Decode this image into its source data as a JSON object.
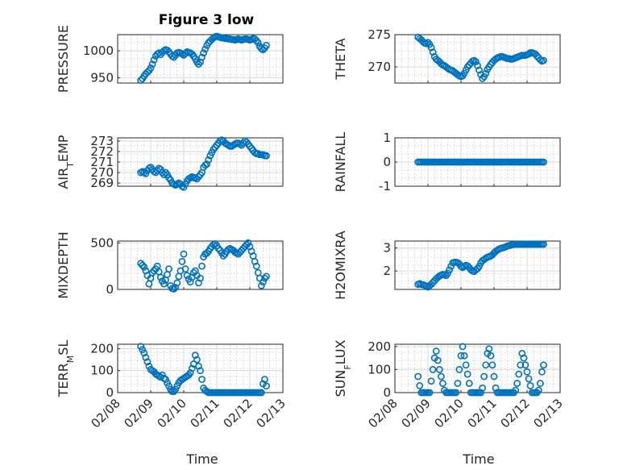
{
  "figure_title": "Figure 3 low",
  "xlabel": "Time",
  "x_ticks": [
    "02/08",
    "02/09",
    "02/10",
    "02/11",
    "02/12",
    "02/13"
  ],
  "marker_color": "#0072bd",
  "chart_data": [
    {
      "type": "scatter",
      "ylabel": "PRESSURE",
      "ylim": [
        940,
        1030
      ],
      "yticks": [
        "950",
        "1000"
      ],
      "xlim": [
        0,
        5
      ],
      "grid": true,
      "x": [
        0.7,
        0.75,
        0.8,
        0.85,
        0.9,
        0.95,
        1.0,
        1.05,
        1.1,
        1.15,
        1.2,
        1.25,
        1.3,
        1.35,
        1.4,
        1.45,
        1.5,
        1.55,
        1.6,
        1.65,
        1.7,
        1.75,
        1.8,
        1.85,
        1.9,
        1.95,
        2.0,
        2.05,
        2.1,
        2.15,
        2.2,
        2.25,
        2.3,
        2.35,
        2.4,
        2.45,
        2.5,
        2.55,
        2.6,
        2.65,
        2.7,
        2.75,
        2.8,
        2.85,
        2.9,
        2.95,
        3.0,
        3.05,
        3.1,
        3.15,
        3.2,
        3.25,
        3.3,
        3.35,
        3.4,
        3.45,
        3.5,
        3.55,
        3.6,
        3.65,
        3.7,
        3.75,
        3.8,
        3.85,
        3.9,
        3.95,
        4.0,
        4.05,
        4.1,
        4.15,
        4.2,
        4.25,
        4.3,
        4.35,
        4.4,
        4.45,
        4.5
      ],
      "values": [
        945,
        948,
        953,
        957,
        960,
        963,
        968,
        975,
        983,
        990,
        994,
        996,
        993,
        997,
        1000,
        1002,
        1001,
        998,
        994,
        990,
        988,
        992,
        996,
        997,
        996,
        994,
        992,
        995,
        998,
        997,
        996,
        994,
        990,
        985,
        979,
        975,
        979,
        988,
        996,
        1003,
        1010,
        1015,
        1018,
        1021,
        1024,
        1026,
        1027,
        1026,
        1025,
        1024,
        1024,
        1023,
        1023,
        1022,
        1022,
        1021,
        1021,
        1020,
        1021,
        1022,
        1021,
        1020,
        1021,
        1022,
        1022,
        1021,
        1020,
        1021,
        1023,
        1022,
        1019,
        1015,
        1008,
        1004,
        1002,
        1005,
        1010
      ]
    },
    {
      "type": "scatter",
      "ylabel": "THETA",
      "ylim": [
        267.5,
        275
      ],
      "yticks": [
        "270",
        "275"
      ],
      "xlim": [
        0,
        5
      ],
      "grid": true,
      "x": [
        0.7,
        0.75,
        0.8,
        0.85,
        0.9,
        0.95,
        1.0,
        1.05,
        1.1,
        1.15,
        1.2,
        1.25,
        1.3,
        1.35,
        1.4,
        1.45,
        1.5,
        1.55,
        1.6,
        1.65,
        1.7,
        1.75,
        1.8,
        1.85,
        1.9,
        1.95,
        2.0,
        2.05,
        2.1,
        2.15,
        2.2,
        2.25,
        2.3,
        2.35,
        2.4,
        2.45,
        2.5,
        2.55,
        2.6,
        2.65,
        2.7,
        2.75,
        2.8,
        2.85,
        2.9,
        2.95,
        3.0,
        3.05,
        3.1,
        3.15,
        3.2,
        3.25,
        3.3,
        3.35,
        3.4,
        3.45,
        3.5,
        3.55,
        3.6,
        3.65,
        3.7,
        3.75,
        3.8,
        3.85,
        3.9,
        3.95,
        4.0,
        4.05,
        4.1,
        4.15,
        4.2,
        4.25,
        4.3,
        4.35,
        4.4,
        4.45,
        4.5
      ],
      "values": [
        274.6,
        274.4,
        274.2,
        273.9,
        273.7,
        273.6,
        273.8,
        273.5,
        273.0,
        272.3,
        271.6,
        271.2,
        271.0,
        270.8,
        270.5,
        270.3,
        270.2,
        270.0,
        269.8,
        269.6,
        269.5,
        269.4,
        269.2,
        269.0,
        268.8,
        268.6,
        268.5,
        268.6,
        269.0,
        269.5,
        270.0,
        270.3,
        270.6,
        270.9,
        271.0,
        270.8,
        270.2,
        269.5,
        268.8,
        268.2,
        268.5,
        269.0,
        269.6,
        270.0,
        270.4,
        270.7,
        271.0,
        271.2,
        271.4,
        271.5,
        271.6,
        271.6,
        271.5,
        271.4,
        271.3,
        271.3,
        271.2,
        271.2,
        271.3,
        271.4,
        271.5,
        271.6,
        271.7,
        271.8,
        271.8,
        271.8,
        271.9,
        272.0,
        272.2,
        272.2,
        272.1,
        272.0,
        271.7,
        271.4,
        271.1,
        270.9,
        271.0
      ]
    },
    {
      "type": "scatter",
      "ylabel": "AIR_T_EMP",
      "ylim": [
        268.7,
        273.3
      ],
      "yticks": [
        "269",
        "270",
        "271",
        "272",
        "273"
      ],
      "xlim": [
        0,
        5
      ],
      "grid": true,
      "x": [
        0.7,
        0.75,
        0.8,
        0.85,
        0.9,
        0.95,
        1.0,
        1.05,
        1.1,
        1.15,
        1.2,
        1.25,
        1.3,
        1.35,
        1.4,
        1.45,
        1.5,
        1.55,
        1.6,
        1.65,
        1.7,
        1.75,
        1.8,
        1.85,
        1.9,
        1.95,
        2.0,
        2.05,
        2.1,
        2.15,
        2.2,
        2.25,
        2.3,
        2.35,
        2.4,
        2.45,
        2.5,
        2.55,
        2.6,
        2.65,
        2.7,
        2.75,
        2.8,
        2.85,
        2.9,
        2.95,
        3.0,
        3.05,
        3.1,
        3.15,
        3.2,
        3.25,
        3.3,
        3.35,
        3.4,
        3.45,
        3.5,
        3.55,
        3.6,
        3.65,
        3.7,
        3.75,
        3.8,
        3.85,
        3.9,
        3.95,
        4.0,
        4.05,
        4.1,
        4.15,
        4.2,
        4.25,
        4.3,
        4.35,
        4.4,
        4.45,
        4.5
      ],
      "values": [
        270.0,
        270.1,
        270.0,
        269.9,
        270.2,
        270.4,
        270.5,
        270.3,
        270.1,
        270.0,
        270.2,
        270.4,
        270.3,
        270.0,
        269.8,
        270.0,
        269.8,
        269.5,
        269.3,
        269.0,
        268.9,
        268.8,
        268.9,
        269.0,
        268.9,
        268.7,
        268.6,
        268.9,
        269.2,
        269.4,
        269.5,
        269.6,
        269.5,
        269.5,
        269.4,
        269.6,
        269.8,
        270.0,
        270.5,
        270.7,
        270.8,
        271.2,
        271.6,
        271.9,
        272.2,
        272.4,
        272.6,
        272.8,
        273.0,
        273.1,
        273.0,
        272.8,
        272.7,
        272.6,
        272.5,
        272.5,
        272.6,
        272.7,
        272.8,
        272.8,
        272.7,
        272.6,
        272.8,
        273.0,
        272.9,
        272.7,
        272.5,
        272.3,
        272.1,
        271.9,
        271.8,
        271.8,
        271.7,
        271.7,
        271.7,
        271.6,
        271.6
      ]
    },
    {
      "type": "scatter",
      "ylabel": "RAINFALL",
      "ylim": [
        -1,
        1
      ],
      "yticks": [
        "-1",
        "0",
        "1"
      ],
      "xlim": [
        0,
        5
      ],
      "grid": true,
      "x": [
        0.7,
        0.75,
        0.8,
        0.85,
        0.9,
        0.95,
        1.0,
        1.05,
        1.1,
        1.15,
        1.2,
        1.25,
        1.3,
        1.35,
        1.4,
        1.45,
        1.5,
        1.55,
        1.6,
        1.65,
        1.7,
        1.75,
        1.8,
        1.85,
        1.9,
        1.95,
        2.0,
        2.05,
        2.1,
        2.15,
        2.2,
        2.25,
        2.3,
        2.35,
        2.4,
        2.45,
        2.5,
        2.55,
        2.6,
        2.65,
        2.7,
        2.75,
        2.8,
        2.85,
        2.9,
        2.95,
        3.0,
        3.05,
        3.1,
        3.15,
        3.2,
        3.25,
        3.3,
        3.35,
        3.4,
        3.45,
        3.5,
        3.55,
        3.6,
        3.65,
        3.7,
        3.75,
        3.8,
        3.85,
        3.9,
        3.95,
        4.0,
        4.05,
        4.1,
        4.15,
        4.2,
        4.25,
        4.3,
        4.35,
        4.4,
        4.45,
        4.5
      ],
      "values": [
        0,
        0,
        0,
        0,
        0,
        0,
        0,
        0,
        0,
        0,
        0,
        0,
        0,
        0,
        0,
        0,
        0,
        0,
        0,
        0,
        0,
        0,
        0,
        0,
        0,
        0,
        0,
        0,
        0,
        0,
        0,
        0,
        0,
        0,
        0,
        0,
        0,
        0,
        0,
        0,
        0,
        0,
        0,
        0,
        0,
        0,
        0,
        0,
        0,
        0,
        0,
        0,
        0,
        0,
        0,
        0,
        0,
        0,
        0,
        0,
        0,
        0,
        0,
        0,
        0,
        0,
        0,
        0,
        0,
        0,
        0,
        0,
        0,
        0,
        0,
        0,
        0
      ]
    },
    {
      "type": "scatter",
      "ylabel": "MIXDEPTH",
      "ylim": [
        0,
        520
      ],
      "yticks": [
        "0",
        "500"
      ],
      "xlim": [
        0,
        5
      ],
      "grid": true,
      "x": [
        0.7,
        0.75,
        0.8,
        0.85,
        0.9,
        0.95,
        1.0,
        1.05,
        1.1,
        1.15,
        1.2,
        1.25,
        1.3,
        1.35,
        1.4,
        1.45,
        1.5,
        1.55,
        1.6,
        1.65,
        1.7,
        1.75,
        1.8,
        1.85,
        1.9,
        1.95,
        2.0,
        2.05,
        2.1,
        2.15,
        2.2,
        2.25,
        2.3,
        2.35,
        2.4,
        2.45,
        2.5,
        2.55,
        2.6,
        2.65,
        2.7,
        2.75,
        2.8,
        2.85,
        2.9,
        2.95,
        3.0,
        3.05,
        3.1,
        3.15,
        3.2,
        3.25,
        3.3,
        3.35,
        3.4,
        3.45,
        3.5,
        3.55,
        3.6,
        3.65,
        3.7,
        3.75,
        3.8,
        3.85,
        3.9,
        3.95,
        4.0,
        4.05,
        4.1,
        4.15,
        4.2,
        4.25,
        4.3,
        4.35,
        4.4,
        4.45,
        4.5
      ],
      "values": [
        280,
        260,
        240,
        200,
        150,
        60,
        120,
        180,
        200,
        220,
        250,
        190,
        130,
        90,
        60,
        100,
        160,
        220,
        40,
        10,
        5,
        20,
        70,
        140,
        200,
        300,
        380,
        220,
        150,
        110,
        80,
        130,
        180,
        200,
        150,
        70,
        120,
        250,
        350,
        380,
        390,
        410,
        440,
        460,
        480,
        490,
        470,
        440,
        420,
        390,
        360,
        380,
        410,
        430,
        440,
        430,
        420,
        400,
        390,
        380,
        400,
        420,
        440,
        460,
        480,
        500,
        460,
        410,
        360,
        300,
        250,
        180,
        120,
        40,
        80,
        120,
        140
      ]
    },
    {
      "type": "scatter",
      "ylabel": "H2OMIXRA",
      "ylim": [
        1.2,
        3.3
      ],
      "yticks": [
        "2",
        "3"
      ],
      "xlim": [
        0,
        5
      ],
      "grid": true,
      "x": [
        0.7,
        0.75,
        0.8,
        0.85,
        0.9,
        0.95,
        1.0,
        1.05,
        1.1,
        1.15,
        1.2,
        1.25,
        1.3,
        1.35,
        1.4,
        1.45,
        1.5,
        1.55,
        1.6,
        1.65,
        1.7,
        1.75,
        1.8,
        1.85,
        1.9,
        1.95,
        2.0,
        2.05,
        2.1,
        2.15,
        2.2,
        2.25,
        2.3,
        2.35,
        2.4,
        2.45,
        2.5,
        2.55,
        2.6,
        2.65,
        2.7,
        2.75,
        2.8,
        2.85,
        2.9,
        2.95,
        3.0,
        3.05,
        3.1,
        3.15,
        3.2,
        3.25,
        3.3,
        3.35,
        3.4,
        3.45,
        3.5,
        3.55,
        3.6,
        3.65,
        3.7,
        3.75,
        3.8,
        3.85,
        3.9,
        3.95,
        4.0,
        4.05,
        4.1,
        4.15,
        4.2,
        4.25,
        4.3,
        4.35,
        4.4,
        4.45,
        4.5
      ],
      "values": [
        1.42,
        1.45,
        1.42,
        1.4,
        1.38,
        1.35,
        1.3,
        1.36,
        1.42,
        1.5,
        1.58,
        1.66,
        1.72,
        1.78,
        1.82,
        1.85,
        1.84,
        1.8,
        1.9,
        2.05,
        2.2,
        2.35,
        2.38,
        2.38,
        2.36,
        2.3,
        2.2,
        2.15,
        2.2,
        2.25,
        2.22,
        2.15,
        2.05,
        2.0,
        1.98,
        2.05,
        2.1,
        2.2,
        2.35,
        2.45,
        2.5,
        2.55,
        2.6,
        2.62,
        2.65,
        2.7,
        2.78,
        2.85,
        2.9,
        2.95,
        2.98,
        3.0,
        3.02,
        3.05,
        3.08,
        3.1,
        3.12,
        3.14,
        3.15,
        3.16,
        3.16,
        3.16,
        3.16,
        3.16,
        3.16,
        3.16,
        3.16,
        3.16,
        3.16,
        3.16,
        3.16,
        3.16,
        3.16,
        3.16,
        3.16,
        3.16,
        3.16
      ]
    },
    {
      "type": "scatter",
      "ylabel": "TERR_M_SL",
      "ylim": [
        0,
        220
      ],
      "yticks": [
        "0",
        "100",
        "200"
      ],
      "xlim": [
        0,
        5
      ],
      "grid": true,
      "x": [
        0.7,
        0.75,
        0.8,
        0.85,
        0.9,
        0.95,
        1.0,
        1.05,
        1.1,
        1.15,
        1.2,
        1.25,
        1.3,
        1.35,
        1.4,
        1.45,
        1.5,
        1.55,
        1.6,
        1.65,
        1.7,
        1.75,
        1.8,
        1.85,
        1.9,
        1.95,
        2.0,
        2.05,
        2.1,
        2.15,
        2.2,
        2.25,
        2.3,
        2.35,
        2.4,
        2.45,
        2.5,
        2.55,
        2.6,
        2.65,
        2.7,
        2.75,
        2.8,
        2.85,
        2.9,
        2.95,
        3.0,
        3.05,
        3.1,
        3.15,
        3.2,
        3.25,
        3.3,
        3.35,
        3.4,
        3.45,
        3.5,
        3.55,
        3.6,
        3.65,
        3.7,
        3.75,
        3.8,
        3.85,
        3.9,
        3.95,
        4.0,
        4.05,
        4.1,
        4.15,
        4.2,
        4.25,
        4.3,
        4.35,
        4.4,
        4.45,
        4.5
      ],
      "values": [
        210,
        195,
        180,
        160,
        140,
        120,
        105,
        100,
        95,
        85,
        80,
        75,
        70,
        80,
        65,
        60,
        45,
        30,
        15,
        5,
        5,
        15,
        30,
        45,
        55,
        60,
        65,
        70,
        75,
        80,
        90,
        110,
        130,
        170,
        150,
        120,
        100,
        60,
        20,
        10,
        5,
        0,
        0,
        0,
        0,
        0,
        0,
        0,
        0,
        0,
        0,
        0,
        0,
        0,
        0,
        0,
        0,
        0,
        0,
        0,
        0,
        0,
        0,
        0,
        0,
        0,
        0,
        0,
        0,
        0,
        0,
        0,
        0,
        0,
        40,
        60,
        30
      ]
    },
    {
      "type": "scatter",
      "ylabel": "SUN_F_LUX",
      "ylim": [
        0,
        210
      ],
      "yticks": [
        "0",
        "100",
        "200"
      ],
      "xlim": [
        0,
        5
      ],
      "grid": true,
      "x": [
        0.7,
        0.75,
        0.8,
        0.85,
        0.9,
        0.95,
        1.0,
        1.05,
        1.1,
        1.15,
        1.2,
        1.25,
        1.3,
        1.35,
        1.4,
        1.45,
        1.5,
        1.55,
        1.6,
        1.65,
        1.7,
        1.75,
        1.8,
        1.85,
        1.9,
        1.95,
        2.0,
        2.05,
        2.1,
        2.15,
        2.2,
        2.25,
        2.3,
        2.35,
        2.4,
        2.45,
        2.5,
        2.55,
        2.6,
        2.65,
        2.7,
        2.75,
        2.8,
        2.85,
        2.9,
        2.95,
        3.0,
        3.05,
        3.1,
        3.15,
        3.2,
        3.25,
        3.3,
        3.35,
        3.4,
        3.45,
        3.5,
        3.55,
        3.6,
        3.65,
        3.7,
        3.75,
        3.8,
        3.85,
        3.9,
        3.95,
        4.0,
        4.05,
        4.1,
        4.15,
        4.2,
        4.25,
        4.3,
        4.35,
        4.4,
        4.45,
        4.5
      ],
      "values": [
        70,
        30,
        0,
        0,
        0,
        0,
        0,
        0,
        50,
        100,
        150,
        180,
        140,
        100,
        70,
        40,
        10,
        0,
        0,
        0,
        0,
        0,
        0,
        0,
        40,
        100,
        160,
        200,
        160,
        120,
        80,
        40,
        0,
        0,
        0,
        0,
        0,
        0,
        0,
        20,
        70,
        120,
        170,
        190,
        160,
        120,
        70,
        20,
        0,
        0,
        0,
        0,
        0,
        0,
        0,
        0,
        0,
        0,
        0,
        10,
        40,
        80,
        120,
        170,
        150,
        120,
        90,
        60,
        30,
        0,
        0,
        0,
        0,
        10,
        40,
        90,
        120
      ]
    }
  ]
}
